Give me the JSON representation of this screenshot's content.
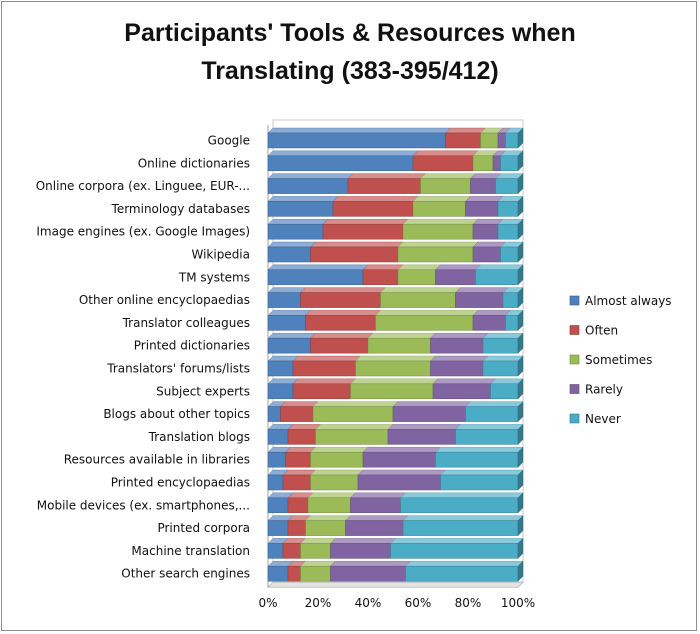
{
  "chart_data": {
    "type": "bar",
    "orientation": "horizontal",
    "stacked": "percent",
    "title": "Participants' Tools & Resources when Translating (383-395/412)",
    "title_lines": [
      "Participants' Tools & Resources when",
      "Translating (383-395/412)"
    ],
    "xlim": [
      0,
      100
    ],
    "x_ticks": [
      "0%",
      "20%",
      "40%",
      "60%",
      "80%",
      "100%"
    ],
    "grid": false,
    "legend_position": "right",
    "categories": [
      "Google",
      "Online dictionaries",
      "Online corpora (ex. Linguee, EUR-...",
      "Terminology databases",
      "Image  engines (ex. Google Images)",
      "Wikipedia",
      "TM systems",
      "Other online encyclopaedias",
      "Translator colleagues",
      "Printed dictionaries",
      "Translators' forums/lists",
      "Subject experts",
      "Blogs about other topics",
      "Translation blogs",
      "Resources available in libraries",
      "Printed encyclopaedias",
      "Mobile devices (ex. smartphones,...",
      "Printed corpora",
      "Machine translation",
      "Other search engines"
    ],
    "series": [
      {
        "name": "Almost always",
        "color": "#4f81bd",
        "values": [
          71,
          58,
          32,
          26,
          22,
          17,
          38,
          13,
          15,
          17,
          10,
          10,
          5,
          8,
          7,
          6,
          8,
          8,
          6,
          8
        ]
      },
      {
        "name": "Often",
        "color": "#c0504d",
        "values": [
          14,
          24,
          29,
          32,
          32,
          35,
          14,
          32,
          28,
          23,
          25,
          23,
          13,
          11,
          10,
          11,
          8,
          7,
          7,
          5
        ]
      },
      {
        "name": "Sometimes",
        "color": "#9bbb59",
        "values": [
          7,
          8,
          20,
          21,
          28,
          30,
          15,
          30,
          39,
          25,
          30,
          33,
          32,
          29,
          21,
          19,
          17,
          16,
          12,
          12
        ]
      },
      {
        "name": "Rarely",
        "color": "#8064a2",
        "values": [
          3,
          3,
          10,
          13,
          10,
          11,
          16,
          19,
          13,
          21,
          21,
          23,
          29,
          27,
          29,
          33,
          20,
          23,
          24,
          30
        ]
      },
      {
        "name": "Never",
        "color": "#4bacc6",
        "values": [
          5,
          7,
          9,
          8,
          8,
          7,
          17,
          6,
          5,
          14,
          14,
          11,
          21,
          25,
          33,
          31,
          47,
          46,
          51,
          45
        ]
      }
    ]
  }
}
